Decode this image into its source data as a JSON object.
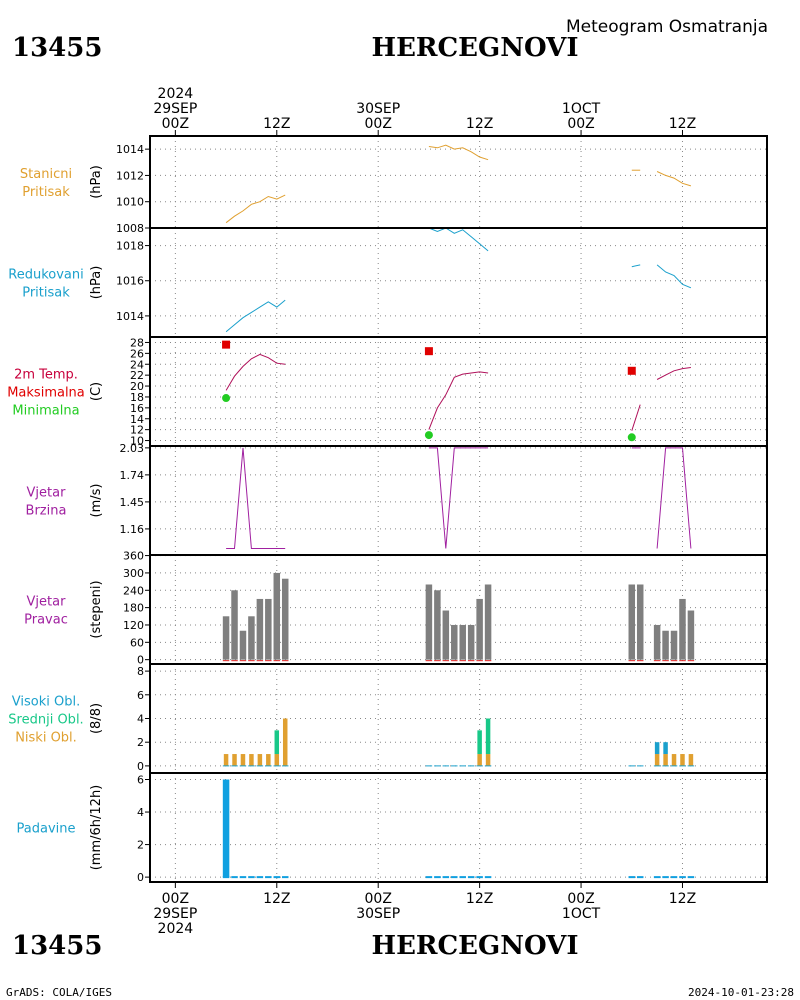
{
  "header": {
    "station_id": "13455",
    "station_name": "HERCEGNOVI",
    "subtitle": "Meteogram Osmatranja"
  },
  "footer": {
    "station_id": "13455",
    "station_name": "HERCEGNOVI",
    "credit": "GrADS: COLA/IGES",
    "timestamp": "2024-10-01-23:28"
  },
  "time_axis": {
    "top": [
      {
        "t": 0,
        "lines": [
          "2024",
          "29SEP",
          "00Z"
        ]
      },
      {
        "t": 12,
        "lines": [
          "12Z"
        ]
      },
      {
        "t": 24,
        "lines": [
          "30SEP",
          "00Z"
        ]
      },
      {
        "t": 36,
        "lines": [
          "12Z"
        ]
      },
      {
        "t": 48,
        "lines": [
          "1OCT",
          "00Z"
        ]
      },
      {
        "t": 60,
        "lines": [
          "12Z"
        ]
      }
    ],
    "bottom": [
      {
        "t": 0,
        "lines": [
          "00Z",
          "29SEP",
          "2024"
        ]
      },
      {
        "t": 12,
        "lines": [
          "12Z"
        ]
      },
      {
        "t": 24,
        "lines": [
          "00Z",
          "30SEP"
        ]
      },
      {
        "t": 36,
        "lines": [
          "12Z"
        ]
      },
      {
        "t": 48,
        "lines": [
          "00Z",
          "1OCT"
        ]
      },
      {
        "t": 60,
        "lines": [
          "12Z"
        ]
      }
    ],
    "range_hours": [
      -3,
      70
    ]
  },
  "chart_data": [
    {
      "type": "line",
      "id": "station-pressure",
      "labels": [
        {
          "text": "Stanicni",
          "color": "#e0a030"
        },
        {
          "text": "Pritisak",
          "color": "#e0a030"
        }
      ],
      "ylabel": "(hPa)",
      "ylim": [
        1008,
        1015
      ],
      "yticks": [
        1008,
        1010,
        1012,
        1014
      ],
      "color": "#e0a030",
      "series": [
        {
          "x": [
            6,
            7,
            8,
            9,
            10,
            11,
            12,
            13
          ],
          "y": [
            1008.4,
            1008.9,
            1009.3,
            1009.8,
            1010.0,
            1010.4,
            1010.2,
            1010.5
          ]
        },
        {
          "x": [
            30,
            31,
            32,
            33,
            34,
            35,
            36,
            37
          ],
          "y": [
            1014.2,
            1014.1,
            1014.3,
            1014.0,
            1014.1,
            1013.8,
            1013.4,
            1013.2
          ]
        },
        {
          "x": [
            54,
            55
          ],
          "y": [
            1012.4,
            1012.4
          ]
        },
        {
          "x": [
            57,
            58,
            59,
            60,
            61
          ],
          "y": [
            1012.3,
            1012.0,
            1011.8,
            1011.4,
            1011.2
          ]
        }
      ]
    },
    {
      "type": "line",
      "id": "reduced-pressure",
      "labels": [
        {
          "text": "Redukovani",
          "color": "#1aa0cc"
        },
        {
          "text": "Pritisak",
          "color": "#1aa0cc"
        }
      ],
      "ylabel": "(hPa)",
      "ylim": [
        1012.8,
        1019
      ],
      "yticks": [
        1014,
        1016,
        1018
      ],
      "color": "#1aa0cc",
      "series": [
        {
          "x": [
            6,
            7,
            8,
            9,
            10,
            11,
            12,
            13
          ],
          "y": [
            1013.1,
            1013.5,
            1013.9,
            1014.2,
            1014.5,
            1014.8,
            1014.5,
            1014.9
          ]
        },
        {
          "x": [
            30,
            31,
            32,
            33,
            34,
            35,
            36,
            37
          ],
          "y": [
            1019.0,
            1018.8,
            1019.0,
            1018.7,
            1018.9,
            1018.5,
            1018.1,
            1017.7
          ]
        },
        {
          "x": [
            54,
            55
          ],
          "y": [
            1016.8,
            1016.9
          ]
        },
        {
          "x": [
            57,
            58,
            59,
            60,
            61
          ],
          "y": [
            1016.9,
            1016.5,
            1016.3,
            1015.8,
            1015.6
          ]
        }
      ]
    },
    {
      "type": "line",
      "id": "temperature",
      "labels": [
        {
          "text": "2m Temp.",
          "color": "#c8003c"
        },
        {
          "text": "Maksimalna",
          "color": "#e00000"
        },
        {
          "text": "Minimalna",
          "color": "#22cc22"
        }
      ],
      "ylabel": "(C)",
      "ylim": [
        9,
        29
      ],
      "yticks": [
        10,
        12,
        14,
        16,
        18,
        20,
        22,
        24,
        26,
        28
      ],
      "color": "#b0105a",
      "series": [
        {
          "x": [
            6,
            7,
            8,
            9,
            10,
            11,
            12,
            13
          ],
          "y": [
            19.2,
            21.8,
            23.6,
            25.0,
            25.8,
            25.2,
            24.2,
            24.0
          ]
        },
        {
          "x": [
            30,
            31,
            32,
            33,
            34,
            35,
            36,
            37
          ],
          "y": [
            12.0,
            16.0,
            18.4,
            21.6,
            22.2,
            22.4,
            22.6,
            22.4
          ]
        },
        {
          "x": [
            54,
            55
          ],
          "y": [
            11.8,
            16.6
          ]
        },
        {
          "x": [
            57,
            58,
            59,
            60,
            61
          ],
          "y": [
            21.2,
            22.0,
            22.8,
            23.2,
            23.4
          ]
        }
      ],
      "max_points": [
        {
          "x": 6,
          "y": 27.6
        },
        {
          "x": 30,
          "y": 26.4
        },
        {
          "x": 54,
          "y": 22.8
        }
      ],
      "min_points": [
        {
          "x": 6,
          "y": 17.8
        },
        {
          "x": 30,
          "y": 11.0
        },
        {
          "x": 54,
          "y": 10.6
        }
      ],
      "max_color": "#e00000",
      "min_color": "#22cc22"
    },
    {
      "type": "line",
      "id": "wind-speed",
      "labels": [
        {
          "text": "Vjetar",
          "color": "#a020a0"
        },
        {
          "text": "Brzina",
          "color": "#a020a0"
        }
      ],
      "ylabel": "(m/s)",
      "ylim": [
        0.88,
        2.05
      ],
      "yticks": [
        1.16,
        1.45,
        1.74,
        2.03
      ],
      "color": "#a020a0",
      "series": [
        {
          "x": [
            6,
            7,
            8,
            9,
            10,
            11,
            12,
            13
          ],
          "y": [
            0.95,
            0.95,
            2.03,
            0.95,
            0.95,
            0.95,
            0.95,
            0.95
          ]
        },
        {
          "x": [
            30,
            31,
            32,
            33,
            34,
            35,
            36,
            37
          ],
          "y": [
            2.03,
            2.03,
            0.95,
            2.03,
            2.03,
            2.03,
            2.03,
            2.03
          ]
        },
        {
          "x": [
            54,
            55
          ],
          "y": [
            2.03,
            2.03
          ]
        },
        {
          "x": [
            57,
            58,
            59,
            60,
            61
          ],
          "y": [
            0.95,
            2.03,
            2.03,
            2.03,
            0.95
          ]
        }
      ]
    },
    {
      "type": "bar",
      "id": "wind-direction",
      "labels": [
        {
          "text": "Vjetar",
          "color": "#a020a0"
        },
        {
          "text": "Pravac",
          "color": "#a020a0"
        }
      ],
      "ylabel": "(stepeni)",
      "ylim": [
        -15,
        362
      ],
      "yticks": [
        0,
        60,
        120,
        180,
        240,
        300,
        360
      ],
      "color": "#7f7f7f",
      "base_color": "#e02020",
      "x": [
        6,
        7,
        8,
        9,
        10,
        11,
        12,
        13,
        30,
        31,
        32,
        33,
        34,
        35,
        36,
        37,
        54,
        55,
        57,
        58,
        59,
        60,
        61
      ],
      "values": [
        150,
        240,
        100,
        150,
        210,
        210,
        300,
        280,
        260,
        240,
        170,
        120,
        120,
        120,
        210,
        260,
        260,
        260,
        120,
        100,
        100,
        210,
        170
      ]
    },
    {
      "type": "bar",
      "id": "clouds",
      "labels": [
        {
          "text": "Visoki Obl.",
          "color": "#1aa0cc"
        },
        {
          "text": "Srednji Obl.",
          "color": "#18c888"
        },
        {
          "text": "Niski Obl.",
          "color": "#e0a030"
        }
      ],
      "ylabel": "(8/8)",
      "ylim": [
        -0.6,
        8.6
      ],
      "yticks": [
        0,
        2,
        4,
        6,
        8
      ],
      "x": [
        6,
        7,
        8,
        9,
        10,
        11,
        12,
        13,
        30,
        31,
        32,
        33,
        34,
        35,
        36,
        37,
        54,
        55,
        57,
        58,
        59,
        60,
        61
      ],
      "series": [
        {
          "name": "Visoki Obl.",
          "color": "#1aa0cc",
          "values": [
            0,
            0,
            0,
            0,
            0,
            0,
            0,
            0,
            0,
            0,
            0,
            0,
            0,
            0,
            0,
            0,
            0,
            0,
            1,
            1,
            0,
            0,
            0
          ]
        },
        {
          "name": "Srednji Obl.",
          "color": "#18c888",
          "values": [
            0,
            0,
            0,
            0,
            0,
            0,
            2,
            0,
            0,
            0,
            0,
            0,
            0,
            0,
            2,
            3,
            0,
            0,
            0,
            0,
            0,
            0,
            0
          ]
        },
        {
          "name": "Niski Obl.",
          "color": "#e0a030",
          "values": [
            1,
            1,
            1,
            1,
            1,
            1,
            1,
            4,
            0,
            0,
            0,
            0,
            0,
            0,
            1,
            1,
            0,
            0,
            1,
            1,
            1,
            1,
            1
          ]
        }
      ]
    },
    {
      "type": "bar",
      "id": "precipitation",
      "labels": [
        {
          "text": "Padavine",
          "color": "#1aa0cc"
        }
      ],
      "ylabel": "(mm/6h/12h)",
      "ylim": [
        -0.3,
        6.4
      ],
      "yticks": [
        0,
        2,
        4,
        6
      ],
      "color": "#10a0e0",
      "x": [
        6,
        7,
        8,
        9,
        10,
        11,
        12,
        13,
        30,
        31,
        32,
        33,
        34,
        35,
        36,
        37,
        54,
        55,
        57,
        58,
        59,
        60,
        61
      ],
      "values": [
        6.0,
        0,
        0,
        0,
        0,
        0,
        0,
        0,
        0,
        0,
        0,
        0,
        0,
        0,
        0,
        0,
        0,
        0,
        0,
        0,
        0,
        0,
        0
      ]
    }
  ]
}
